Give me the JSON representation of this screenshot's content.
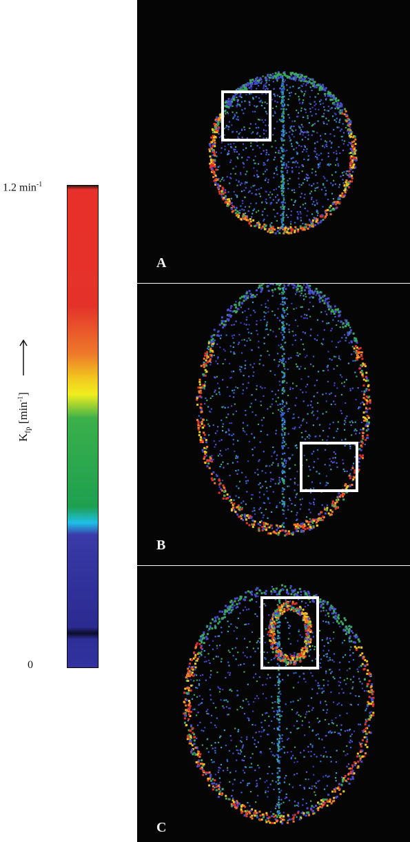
{
  "colorbar": {
    "max_label": "1.2 min",
    "max_label_sup": "-1",
    "min_label": "0",
    "axis_title_main": "K",
    "axis_title_sub": "fp",
    "axis_title_unit_open": " [min",
    "axis_title_unit_sup": "-1",
    "axis_title_unit_close": "]",
    "stops": [
      {
        "value": 1.2,
        "color": "#3a1a10"
      },
      {
        "value": 1.19,
        "color": "#e8302a"
      },
      {
        "value": 0.9,
        "color": "#e4322a"
      },
      {
        "value": 0.78,
        "color": "#ee7a2a"
      },
      {
        "value": 0.72,
        "color": "#f2c81e"
      },
      {
        "value": 0.68,
        "color": "#f0ee1e"
      },
      {
        "value": 0.62,
        "color": "#3ab04a"
      },
      {
        "value": 0.4,
        "color": "#1ea050"
      },
      {
        "value": 0.36,
        "color": "#1ec0e8"
      },
      {
        "value": 0.33,
        "color": "#3a3aa8"
      },
      {
        "value": 0.1,
        "color": "#2a2a90"
      },
      {
        "value": 0.085,
        "color": "#0c0c28"
      },
      {
        "value": 0.07,
        "color": "#2e2e98"
      },
      {
        "value": 0.0,
        "color": "#3232a0"
      }
    ]
  },
  "panels": [
    {
      "label": "A",
      "roi_color": "#ffffff"
    },
    {
      "label": "B",
      "roi_color": "#ffffff"
    },
    {
      "label": "C",
      "roi_color": "#ffffff"
    }
  ]
}
